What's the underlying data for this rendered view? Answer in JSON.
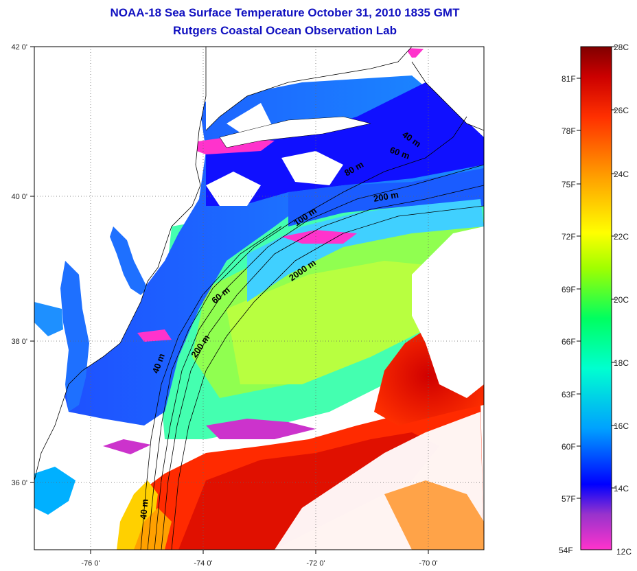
{
  "title": "NOAA-18 Sea Surface Temperature October 31, 2010 1835 GMT",
  "subtitle": "Rutgers Coastal Ocean Observation Lab",
  "axes": {
    "lon_ticks": [
      "-76 0'",
      "-74 0'",
      "-72 0'",
      "-70 0'"
    ],
    "lat_ticks": [
      "42 0'",
      "40 0'",
      "38 0'",
      "36 0'"
    ]
  },
  "depth_labels": [
    "40 m",
    "60 m",
    "80 m",
    "200 m",
    "100 m",
    "2000 m",
    "60 m",
    "200 m",
    "40 m",
    "40 m"
  ],
  "colorbar": {
    "fahrenheit": [
      "81F",
      "78F",
      "75F",
      "72F",
      "69F",
      "66F",
      "63F",
      "60F",
      "57F",
      "54F"
    ],
    "celsius": [
      "28C",
      "26C",
      "24C",
      "22C",
      "20C",
      "18C",
      "16C",
      "14C",
      "12C"
    ],
    "colors": [
      "#ff33cc",
      "#9933cc",
      "#0000ff",
      "#00a0ff",
      "#00ffd0",
      "#00ff60",
      "#a0ff00",
      "#ffff00",
      "#ffa000",
      "#ff3000",
      "#cc0000",
      "#800000"
    ]
  }
}
